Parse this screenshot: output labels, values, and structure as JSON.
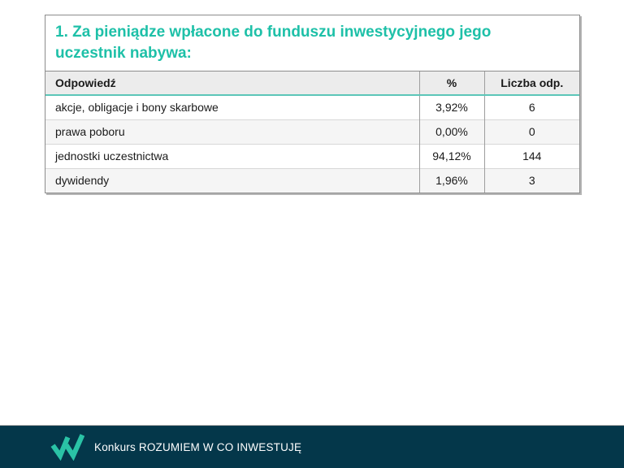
{
  "colors": {
    "accent_teal": "#1ec0a8",
    "header_underline_teal": "#5cc6b8",
    "footer_background": "#04374a",
    "logo_teal": "#2ac3a6",
    "header_row_background": "#ececec",
    "alt_row_background": "#f5f5f5",
    "table_border": "#8c8c8c"
  },
  "question": {
    "title": "1. Za pieniądze wpłacone do funduszu inwestycyjnego jego uczestnik nabywa:"
  },
  "table": {
    "columns": {
      "answer": "Odpowiedź",
      "percent": "%",
      "count": "Liczba odp."
    },
    "rows": [
      {
        "answer": "akcje, obligacje i bony skarbowe",
        "percent": "3,92%",
        "count": "6"
      },
      {
        "answer": "prawa poboru",
        "percent": "0,00%",
        "count": "0"
      },
      {
        "answer": "jednostki uczestnictwa",
        "percent": "94,12%",
        "count": "144"
      },
      {
        "answer": "dywidendy",
        "percent": "1,96%",
        "count": "3"
      }
    ]
  },
  "footer": {
    "label": "Konkurs ROZUMIEM W CO INWESTUJĘ",
    "logo_icon": "double-check-w-logo"
  },
  "chart_data": {
    "type": "table",
    "title": "1. Za pieniądze wpłacone do funduszu inwestycyjnego jego uczestnik nabywa:",
    "categories": [
      "akcje, obligacje i bony skarbowe",
      "prawa poboru",
      "jednostki uczestnictwa",
      "dywidendy"
    ],
    "series": [
      {
        "name": "%",
        "values": [
          3.92,
          0.0,
          94.12,
          1.96
        ]
      },
      {
        "name": "Liczba odp.",
        "values": [
          6,
          0,
          144,
          3
        ]
      }
    ]
  }
}
